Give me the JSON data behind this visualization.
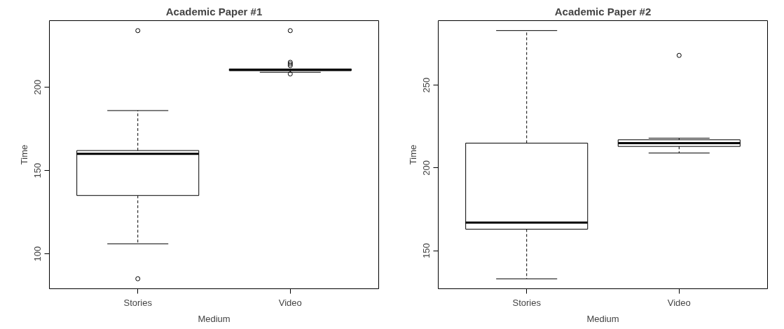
{
  "chart_data": [
    {
      "type": "box",
      "title": "Academic Paper #1",
      "xlabel": "Medium",
      "ylabel": "Time",
      "categories": [
        "Stories",
        "Video"
      ],
      "ylim": [
        79,
        240
      ],
      "yticks": [
        100,
        150,
        200
      ],
      "grid": false,
      "color": "#000000",
      "boxes": [
        {
          "low": 106,
          "q1": 135,
          "median": 160,
          "q3": 162,
          "high": 186,
          "outliers": [
            234,
            85
          ]
        },
        {
          "low": 209,
          "q1": 210,
          "median": 210.5,
          "q3": 211,
          "high": 211,
          "outliers": [
            234,
            215,
            214,
            213,
            208
          ]
        }
      ]
    },
    {
      "type": "box",
      "title": "Academic Paper #2",
      "xlabel": "Medium",
      "ylabel": "Time",
      "categories": [
        "Stories",
        "Video"
      ],
      "ylim": [
        127,
        289
      ],
      "yticks": [
        150,
        200,
        250
      ],
      "grid": false,
      "color": "#000000",
      "boxes": [
        {
          "low": 133,
          "q1": 163,
          "median": 167,
          "q3": 215,
          "high": 283
        },
        {
          "low": 209,
          "q1": 213,
          "median": 215,
          "q3": 217,
          "high": 218,
          "outliers": [
            268
          ]
        }
      ]
    }
  ]
}
